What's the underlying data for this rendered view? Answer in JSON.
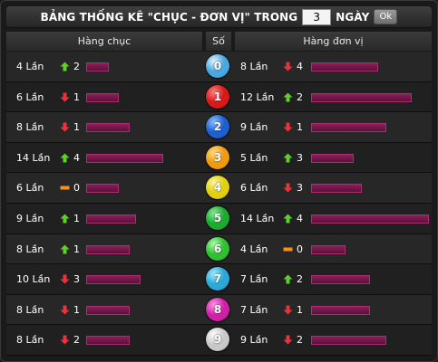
{
  "header": {
    "title": "BẢNG THỐNG KÊ \"CHỤC - ĐƠN VỊ\" TRONG",
    "days_value": "3",
    "days_label": "NGÀY",
    "ok_label": "Ok"
  },
  "columns": {
    "tens": "Hàng chục",
    "digit": "Số",
    "units": "Hàng đơn vị"
  },
  "colors": {
    "up": "#5fd02a",
    "down": "#e8333a",
    "same": "#ff8c1a",
    "bar": "#7a1a4e"
  },
  "rows": [
    {
      "digit": "0",
      "ball_color": "#4aa8e0",
      "ball_core": "#e6f6ff",
      "tens": {
        "count": "4 Lần",
        "trend": "up",
        "change": "2",
        "bar_frac": 0.19
      },
      "units": {
        "count": "8 Lần",
        "trend": "down",
        "change": "4",
        "bar_frac": 0.57
      }
    },
    {
      "digit": "1",
      "ball_color": "#d61a1a",
      "ball_core": "#ff8080",
      "tens": {
        "count": "6 Lần",
        "trend": "down",
        "change": "1",
        "bar_frac": 0.28
      },
      "units": {
        "count": "12 Lần",
        "trend": "up",
        "change": "2",
        "bar_frac": 0.85
      }
    },
    {
      "digit": "2",
      "ball_color": "#1e5fd0",
      "ball_core": "#8fc2ff",
      "tens": {
        "count": "8 Lần",
        "trend": "down",
        "change": "1",
        "bar_frac": 0.37
      },
      "units": {
        "count": "9 Lần",
        "trend": "down",
        "change": "1",
        "bar_frac": 0.64
      }
    },
    {
      "digit": "3",
      "ball_color": "#f09a10",
      "ball_core": "#ffe08a",
      "tens": {
        "count": "14 Lần",
        "trend": "up",
        "change": "4",
        "bar_frac": 0.65
      },
      "units": {
        "count": "5 Lần",
        "trend": "up",
        "change": "3",
        "bar_frac": 0.36
      }
    },
    {
      "digit": "4",
      "ball_color": "#e0d010",
      "ball_core": "#fff6a0",
      "tens": {
        "count": "6 Lần",
        "trend": "same",
        "change": "0",
        "bar_frac": 0.28
      },
      "units": {
        "count": "6 Lần",
        "trend": "down",
        "change": "3",
        "bar_frac": 0.43
      }
    },
    {
      "digit": "5",
      "ball_color": "#1eaa30",
      "ball_core": "#8af09a",
      "tens": {
        "count": "9 Lần",
        "trend": "up",
        "change": "1",
        "bar_frac": 0.42
      },
      "units": {
        "count": "14 Lần",
        "trend": "up",
        "change": "4",
        "bar_frac": 1.0
      }
    },
    {
      "digit": "6",
      "ball_color": "#30c030",
      "ball_core": "#b0ffb0",
      "tens": {
        "count": "8 Lần",
        "trend": "up",
        "change": "1",
        "bar_frac": 0.37
      },
      "units": {
        "count": "4 Lần",
        "trend": "same",
        "change": "0",
        "bar_frac": 0.29
      }
    },
    {
      "digit": "7",
      "ball_color": "#2aa8d8",
      "ball_core": "#a8ecff",
      "tens": {
        "count": "10 Lần",
        "trend": "down",
        "change": "3",
        "bar_frac": 0.46
      },
      "units": {
        "count": "7 Lần",
        "trend": "up",
        "change": "2",
        "bar_frac": 0.5
      }
    },
    {
      "digit": "8",
      "ball_color": "#d020a8",
      "ball_core": "#ff9ae8",
      "tens": {
        "count": "8 Lần",
        "trend": "down",
        "change": "1",
        "bar_frac": 0.37
      },
      "units": {
        "count": "7 Lần",
        "trend": "down",
        "change": "1",
        "bar_frac": 0.5
      }
    },
    {
      "digit": "9",
      "ball_color": "#c8c8c8",
      "ball_core": "#ffffff",
      "tens": {
        "count": "8 Lần",
        "trend": "down",
        "change": "2",
        "bar_frac": 0.37
      },
      "units": {
        "count": "9 Lần",
        "trend": "down",
        "change": "2",
        "bar_frac": 0.64
      }
    }
  ]
}
